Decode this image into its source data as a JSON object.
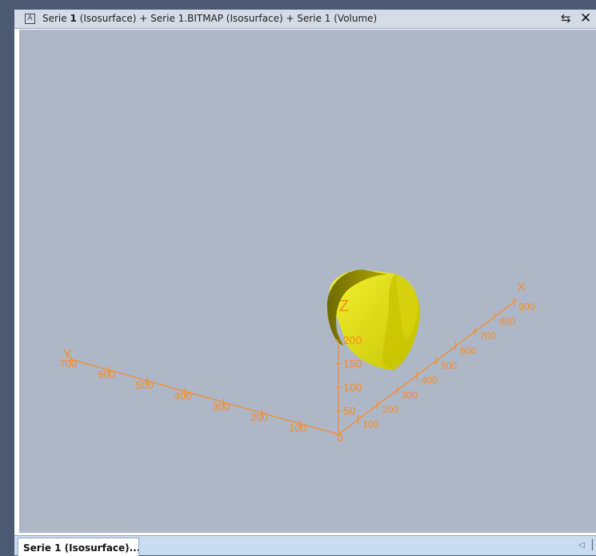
{
  "window": {
    "title_prefix": "Serie ",
    "title_bold": "1",
    "title_rest": " (Isosurface) + Serie 1.BITMAP (Isosurface) + Serie 1 (Volume)",
    "title_icon": "A"
  },
  "tabs": [
    {
      "label": "Serie 1 (Isosurface)..."
    }
  ],
  "scene": {
    "axis_color": "#ff8a1a",
    "object_color": "#e8e81a",
    "axes": {
      "x": {
        "label": "X",
        "ticks": [
          "100",
          "200",
          "300",
          "400",
          "500",
          "600",
          "700",
          "800",
          "900"
        ]
      },
      "y": {
        "label": "Y",
        "ticks": [
          "100",
          "200",
          "300",
          "400",
          "500",
          "600",
          "700"
        ]
      },
      "z": {
        "label": "Z",
        "ticks": [
          "50",
          "100",
          "150",
          "200"
        ]
      },
      "origin_label": "0"
    }
  }
}
